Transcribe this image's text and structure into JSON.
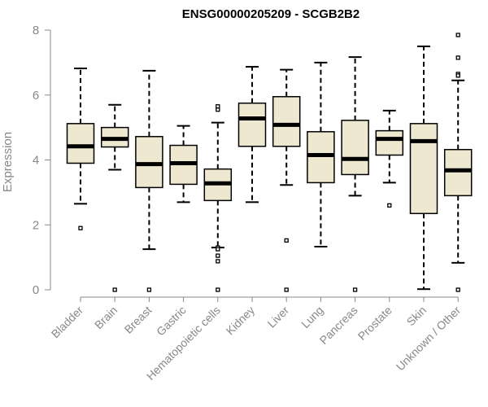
{
  "chart_data": {
    "type": "boxplot",
    "title": "ENSG00000205209 - SCGB2B2",
    "xlabel": "",
    "ylabel": "Expression",
    "ylim": [
      0,
      8
    ],
    "yticks": [
      0,
      2,
      4,
      6,
      8
    ],
    "grid": false,
    "legend": "none",
    "colors": {
      "box_fill": "#efe8d0",
      "stroke": "#000000",
      "axis": "#888888"
    },
    "categories": [
      "Bladder",
      "Brain",
      "Breast",
      "Gastric",
      "Hematopoietic cells",
      "Kidney",
      "Liver",
      "Lung",
      "Pancreas",
      "Prostate",
      "Skin",
      "Unknown / Other"
    ],
    "boxes": [
      {
        "category": "Bladder",
        "whisker_low": 2.65,
        "q1": 3.9,
        "median": 4.42,
        "q3": 5.12,
        "whisker_high": 6.82,
        "outliers": [
          1.9
        ]
      },
      {
        "category": "Brain",
        "whisker_low": 3.7,
        "q1": 4.4,
        "median": 4.65,
        "q3": 5.0,
        "whisker_high": 5.7,
        "outliers": [
          0.0
        ]
      },
      {
        "category": "Breast",
        "whisker_low": 1.25,
        "q1": 3.15,
        "median": 3.87,
        "q3": 4.72,
        "whisker_high": 6.75,
        "outliers": [
          0.0
        ]
      },
      {
        "category": "Gastric",
        "whisker_low": 2.7,
        "q1": 3.25,
        "median": 3.9,
        "q3": 4.45,
        "whisker_high": 5.05,
        "outliers": []
      },
      {
        "category": "Hematopoietic cells",
        "whisker_low": 1.3,
        "q1": 2.75,
        "median": 3.28,
        "q3": 3.72,
        "whisker_high": 5.15,
        "outliers": [
          5.65,
          5.55,
          1.3,
          1.25,
          1.05,
          0.88,
          0.0
        ]
      },
      {
        "category": "Kidney",
        "whisker_low": 2.7,
        "q1": 4.42,
        "median": 5.28,
        "q3": 5.75,
        "whisker_high": 6.87,
        "outliers": []
      },
      {
        "category": "Liver",
        "whisker_low": 3.23,
        "q1": 4.42,
        "median": 5.08,
        "q3": 5.95,
        "whisker_high": 6.78,
        "outliers": [
          1.52,
          0.0
        ]
      },
      {
        "category": "Lung",
        "whisker_low": 1.33,
        "q1": 3.3,
        "median": 4.15,
        "q3": 4.87,
        "whisker_high": 7.0,
        "outliers": []
      },
      {
        "category": "Pancreas",
        "whisker_low": 2.9,
        "q1": 3.55,
        "median": 4.03,
        "q3": 5.22,
        "whisker_high": 7.17,
        "outliers": [
          0.0
        ]
      },
      {
        "category": "Prostate",
        "whisker_low": 3.3,
        "q1": 4.15,
        "median": 4.65,
        "q3": 4.9,
        "whisker_high": 5.52,
        "outliers": [
          2.6
        ]
      },
      {
        "category": "Skin",
        "whisker_low": 0.02,
        "q1": 2.35,
        "median": 4.58,
        "q3": 5.12,
        "whisker_high": 7.5,
        "outliers": []
      },
      {
        "category": "Unknown / Other",
        "whisker_low": 0.83,
        "q1": 2.9,
        "median": 3.68,
        "q3": 4.32,
        "whisker_high": 6.45,
        "outliers": [
          7.85,
          7.15,
          6.65,
          6.6,
          0.0
        ]
      }
    ]
  }
}
